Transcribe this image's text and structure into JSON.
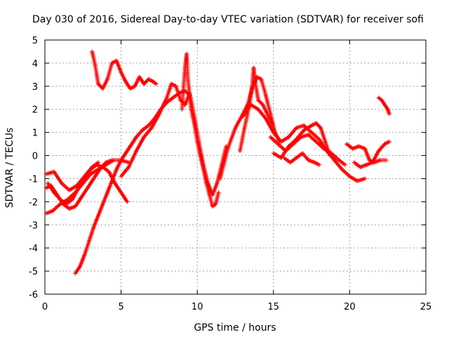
{
  "chart_data": {
    "type": "scatter",
    "title": "Day 030 of 2016, Sidereal Day-to-day VTEC variation (SDTVAR) for receiver sofi",
    "xlabel": "GPS time / hours",
    "ylabel": "SDTVAR / TECUs",
    "xlim": [
      0,
      25
    ],
    "ylim": [
      -6,
      5
    ],
    "xticks": [
      0,
      5,
      10,
      15,
      20,
      25
    ],
    "yticks": [
      -6,
      -5,
      -4,
      -3,
      -2,
      -1,
      0,
      1,
      2,
      3,
      4,
      5
    ],
    "grid": true,
    "marker": "+",
    "color": "#ff0000",
    "series": [
      {
        "x": [
          0.1,
          0.5,
          1.0,
          1.5,
          2.0,
          2.5,
          3.0,
          3.5,
          4.0,
          4.5,
          5.0,
          5.5
        ],
        "y": [
          -2.5,
          -2.4,
          -2.1,
          -1.9,
          -1.6,
          -1.2,
          -0.8,
          -0.6,
          -0.4,
          -0.2,
          -0.2,
          -0.3
        ]
      },
      {
        "x": [
          0.1,
          0.4,
          0.8,
          1.2,
          1.6,
          2.0,
          2.4,
          2.8,
          3.2,
          3.6,
          4.0,
          4.4
        ],
        "y": [
          -1.4,
          -1.3,
          -1.7,
          -2.1,
          -2.3,
          -2.2,
          -1.8,
          -1.4,
          -1.0,
          -0.6,
          -0.3,
          -0.2
        ]
      },
      {
        "x": [
          0.1,
          0.6,
          1.1,
          1.6,
          2.1,
          2.6,
          3.1,
          3.5
        ],
        "y": [
          -0.8,
          -0.7,
          -1.2,
          -1.5,
          -1.3,
          -0.9,
          -0.5,
          -0.3
        ]
      },
      {
        "x": [
          0.2,
          0.6,
          1.0,
          1.4,
          1.8,
          2.2,
          2.6,
          3.0,
          3.4,
          3.8,
          4.2,
          4.6,
          5.0,
          5.4
        ],
        "y": [
          -1.2,
          -1.6,
          -1.9,
          -2.1,
          -1.9,
          -1.4,
          -1.0,
          -0.6,
          -0.4,
          -0.5,
          -0.7,
          -1.2,
          -1.6,
          -2.0
        ]
      },
      {
        "x": [
          2.0,
          2.3,
          2.6,
          2.9,
          3.2,
          3.5,
          3.8,
          4.1,
          4.4,
          4.7,
          5.0,
          5.3,
          5.6,
          6.0,
          6.4,
          6.8,
          7.2,
          7.6,
          8.0,
          8.4,
          8.8,
          9.2,
          9.5
        ],
        "y": [
          -5.1,
          -4.8,
          -4.3,
          -3.7,
          -3.1,
          -2.6,
          -2.1,
          -1.6,
          -1.1,
          -0.6,
          -0.2,
          0.1,
          0.4,
          0.8,
          1.1,
          1.3,
          1.6,
          2.0,
          2.3,
          2.5,
          2.7,
          2.8,
          2.6
        ]
      },
      {
        "x": [
          3.1,
          3.3,
          3.5,
          3.8,
          4.1,
          4.4,
          4.7,
          5.0,
          5.3,
          5.6,
          5.9,
          6.2,
          6.5,
          6.8,
          7.1,
          7.3
        ],
        "y": [
          4.5,
          3.9,
          3.1,
          2.9,
          3.3,
          4.0,
          4.1,
          3.6,
          3.2,
          2.9,
          3.0,
          3.4,
          3.1,
          3.3,
          3.2,
          3.1
        ]
      },
      {
        "x": [
          5.0,
          5.5,
          6.0,
          6.5,
          7.0,
          7.5,
          8.0,
          8.3,
          8.6,
          8.9,
          9.2,
          9.5,
          9.8,
          10.1,
          10.4,
          10.7,
          11.0,
          11.3,
          11.6,
          11.9
        ],
        "y": [
          -0.9,
          -0.5,
          0.2,
          0.8,
          1.2,
          1.8,
          2.5,
          3.1,
          3.0,
          2.4,
          2.2,
          2.7,
          1.7,
          0.6,
          -0.4,
          -1.2,
          -1.7,
          -1.2,
          -0.4,
          0.4
        ]
      },
      {
        "x": [
          9.0,
          9.1,
          9.2,
          9.3,
          9.4,
          9.6,
          9.8,
          10.0,
          10.2,
          10.4,
          10.6,
          10.8,
          11.0,
          11.2,
          11.4
        ],
        "y": [
          2.0,
          3.0,
          3.8,
          4.4,
          3.2,
          2.0,
          1.4,
          0.6,
          0.0,
          -0.6,
          -1.2,
          -1.7,
          -2.2,
          -2.1,
          -1.6
        ]
      },
      {
        "x": [
          11.5,
          12.0,
          12.5,
          13.0,
          13.3,
          13.6,
          13.9,
          14.2,
          14.5,
          14.8,
          15.1,
          15.4
        ],
        "y": [
          -1.0,
          0.3,
          1.2,
          1.8,
          2.2,
          2.9,
          3.4,
          3.3,
          2.6,
          1.8,
          1.0,
          0.6
        ]
      },
      {
        "x": [
          12.8,
          13.1,
          13.4,
          13.6,
          13.7,
          13.8,
          14.0,
          14.3,
          14.6,
          14.9
        ],
        "y": [
          0.2,
          1.2,
          2.1,
          3.0,
          3.8,
          3.2,
          2.4,
          2.2,
          1.8,
          1.4
        ]
      },
      {
        "x": [
          13.0,
          13.5,
          14.0,
          14.5,
          15.0,
          15.5,
          16.0,
          16.5,
          17.0,
          17.5,
          18.0,
          18.5,
          19.0,
          19.5,
          20.0,
          20.5,
          21.0
        ],
        "y": [
          1.7,
          2.2,
          2.0,
          1.6,
          1.0,
          0.6,
          0.8,
          1.2,
          1.3,
          1.0,
          0.7,
          0.2,
          -0.2,
          -0.6,
          -0.9,
          -1.1,
          -1.0
        ]
      },
      {
        "x": [
          14.8,
          15.3,
          15.8,
          16.3,
          16.8,
          17.3,
          17.8,
          18.3,
          18.8,
          19.3,
          19.7
        ],
        "y": [
          0.8,
          0.5,
          0.2,
          0.5,
          0.8,
          0.9,
          0.6,
          0.3,
          0.1,
          -0.2,
          -0.4
        ]
      },
      {
        "x": [
          15.0,
          15.5,
          16.0,
          16.5,
          17.0,
          17.5,
          17.8,
          18.1,
          18.4,
          18.7
        ],
        "y": [
          0.1,
          -0.1,
          0.4,
          0.7,
          1.1,
          1.3,
          1.4,
          1.2,
          0.6,
          0.0
        ]
      },
      {
        "x": [
          15.7,
          16.1,
          16.5,
          16.9,
          17.3,
          17.7,
          18.0
        ],
        "y": [
          -0.1,
          -0.3,
          -0.1,
          0.1,
          -0.2,
          -0.3,
          -0.4
        ]
      },
      {
        "x": [
          19.8,
          20.2,
          20.6,
          21.0,
          21.3,
          21.6,
          22.0,
          22.4
        ],
        "y": [
          0.5,
          0.3,
          0.4,
          0.3,
          -0.2,
          -0.3,
          -0.2,
          -0.2
        ]
      },
      {
        "x": [
          20.3,
          20.7,
          21.1,
          21.5,
          21.9,
          22.3,
          22.6
        ],
        "y": [
          -0.3,
          -0.5,
          -0.4,
          -0.3,
          0.2,
          0.5,
          0.6
        ]
      },
      {
        "x": [
          21.9,
          22.1,
          22.3,
          22.5,
          22.6
        ],
        "y": [
          2.5,
          2.4,
          2.2,
          2.0,
          1.8
        ]
      }
    ]
  }
}
